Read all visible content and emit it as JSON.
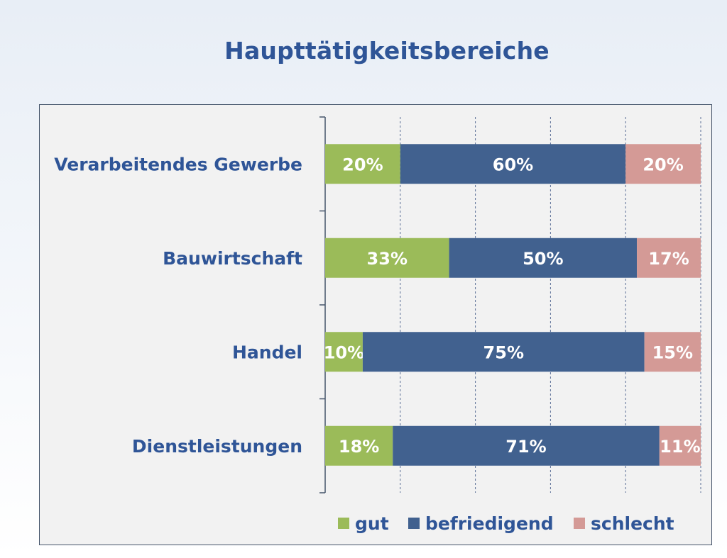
{
  "title": "Haupttätigkeitsbereiche",
  "chart_data": {
    "type": "bar",
    "orientation": "horizontal",
    "stacked": true,
    "title": "Haupttätigkeitsbereiche",
    "categories": [
      "Verarbeitendes Gewerbe",
      "Bauwirtschaft",
      "Handel",
      "Dienstleistungen"
    ],
    "series": [
      {
        "name": "gut",
        "color": "#9bbb59",
        "values": [
          20,
          33,
          10,
          18
        ],
        "labels": [
          "20%",
          "33%",
          "10%",
          "18%"
        ]
      },
      {
        "name": "befriedigend",
        "color": "#41618f",
        "values": [
          60,
          50,
          75,
          71
        ],
        "labels": [
          "60%",
          "50%",
          "75%",
          "71%"
        ]
      },
      {
        "name": "schlecht",
        "color": "#d49a96",
        "values": [
          20,
          17,
          15,
          11
        ],
        "labels": [
          "20%",
          "17%",
          "15%",
          "11%"
        ]
      }
    ],
    "xlim": [
      0,
      100
    ],
    "gridlines": "vertical dashed",
    "legend_position": "bottom"
  }
}
